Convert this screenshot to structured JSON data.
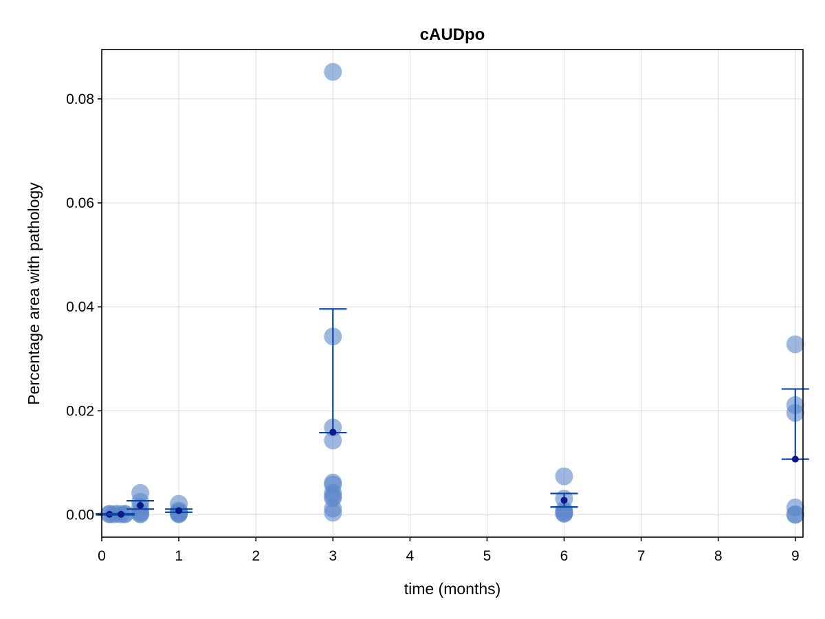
{
  "chart_data": {
    "type": "scatter",
    "title": "cAUDpo",
    "xlabel": "time (months)",
    "ylabel": "Percentage area with pathology",
    "xlim": [
      0,
      9.1
    ],
    "ylim": [
      -0.0043,
      0.0895
    ],
    "x_ticks": [
      0,
      1,
      2,
      3,
      4,
      5,
      6,
      7,
      8,
      9
    ],
    "x_tick_labels": [
      "0",
      "1",
      "2",
      "3",
      "4",
      "5",
      "6",
      "7",
      "8",
      "9"
    ],
    "y_ticks": [
      0.0,
      0.02,
      0.04,
      0.06,
      0.08
    ],
    "y_tick_labels": [
      "0.00",
      "0.02",
      "0.04",
      "0.06",
      "0.08"
    ],
    "grid": true,
    "colors": {
      "points": "#5b87c9",
      "errorbar": "#0b47a5",
      "mean": "#0a1a8c"
    },
    "points": [
      {
        "x": 0.1,
        "y": 0.0002
      },
      {
        "x": 0.1,
        "y": 0.0001
      },
      {
        "x": 0.15,
        "y": 0.0001
      },
      {
        "x": 0.2,
        "y": 0.0002
      },
      {
        "x": 0.25,
        "y": 0.0001
      },
      {
        "x": 0.3,
        "y": 0.0002
      },
      {
        "x": 0.3,
        "y": 0.0001
      },
      {
        "x": 0.5,
        "y": 0.0042
      },
      {
        "x": 0.5,
        "y": 0.0025
      },
      {
        "x": 0.5,
        "y": 0.0015
      },
      {
        "x": 0.5,
        "y": 0.0005
      },
      {
        "x": 0.5,
        "y": 0.0002
      },
      {
        "x": 0.5,
        "y": 0.0001
      },
      {
        "x": 1,
        "y": 0.0021
      },
      {
        "x": 1,
        "y": 0.0008
      },
      {
        "x": 1,
        "y": 0.0005
      },
      {
        "x": 1,
        "y": 0.0003
      },
      {
        "x": 1,
        "y": 0.0002
      },
      {
        "x": 1,
        "y": 0.0001
      },
      {
        "x": 3,
        "y": 0.0852
      },
      {
        "x": 3,
        "y": 0.0343
      },
      {
        "x": 3,
        "y": 0.0168
      },
      {
        "x": 3,
        "y": 0.0143
      },
      {
        "x": 3,
        "y": 0.0062
      },
      {
        "x": 3,
        "y": 0.0058
      },
      {
        "x": 3,
        "y": 0.0042
      },
      {
        "x": 3,
        "y": 0.0036
      },
      {
        "x": 3,
        "y": 0.0032
      },
      {
        "x": 3,
        "y": 0.0012
      },
      {
        "x": 3,
        "y": 0.0004
      },
      {
        "x": 6,
        "y": 0.0074
      },
      {
        "x": 6,
        "y": 0.0031
      },
      {
        "x": 6,
        "y": 0.0009
      },
      {
        "x": 6,
        "y": 0.0005
      },
      {
        "x": 6,
        "y": 0.0003
      },
      {
        "x": 6,
        "y": 0.0002
      },
      {
        "x": 9,
        "y": 0.0328
      },
      {
        "x": 9,
        "y": 0.0211
      },
      {
        "x": 9,
        "y": 0.0196
      },
      {
        "x": 9,
        "y": 0.0014
      },
      {
        "x": 9,
        "y": 0.0001
      },
      {
        "x": 9,
        "y": 0.0
      }
    ],
    "summary": [
      {
        "x": 0.1,
        "mean": 0.0001,
        "low": 0.0,
        "high": 0.0002
      },
      {
        "x": 0.25,
        "mean": 0.0001,
        "low": 0.0,
        "high": 0.0002
      },
      {
        "x": 0.5,
        "mean": 0.0018,
        "low": 0.0011,
        "high": 0.0027
      },
      {
        "x": 1,
        "mean": 0.0008,
        "low": 0.0005,
        "high": 0.0011
      },
      {
        "x": 3,
        "mean": 0.0159,
        "low": 0.0158,
        "high": 0.0396
      },
      {
        "x": 6,
        "mean": 0.0028,
        "low": 0.0015,
        "high": 0.0041
      },
      {
        "x": 9,
        "mean": 0.0107,
        "low": 0.0107,
        "high": 0.0242
      }
    ]
  }
}
